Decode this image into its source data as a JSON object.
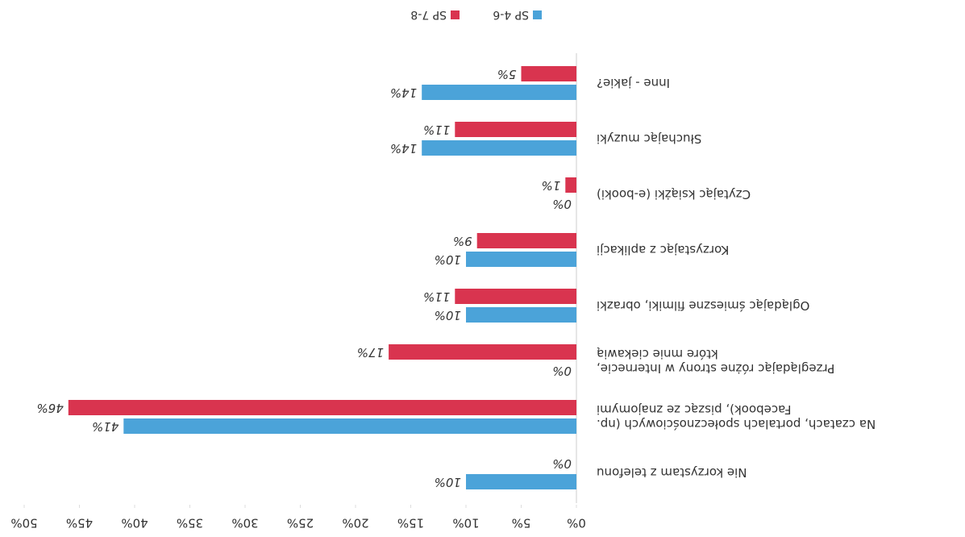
{
  "chart_data": {
    "type": "hbar",
    "categories": [
      "Nie korzystam z telefonu",
      "Na czatach, portalach społecznościowych (np. Facebook), pisząc ze znajomymi",
      "Przeglądając różne strony w Internecie, które mnie ciekawią",
      "Oglądając śmieszne filmiki, obrazki",
      "Korzystając z aplikacji",
      "Czytając książki (e-booki)",
      "Słuchając muzyki",
      "Inne - jakie?"
    ],
    "series": [
      {
        "name": "SP 4-6",
        "color": "#4ba3d9",
        "values": [
          10,
          41,
          0,
          10,
          10,
          0,
          14,
          14
        ],
        "value_labels": [
          "10%",
          "41%",
          "0%",
          "10%",
          "10%",
          "0%",
          "14%",
          "14%"
        ]
      },
      {
        "name": "SP 7-8",
        "color": "#d9344f",
        "values": [
          0,
          46,
          17,
          11,
          9,
          1,
          11,
          5
        ],
        "value_labels": [
          "0%",
          "46%",
          "17%",
          "11%",
          "9%",
          "1%",
          "11%",
          "5%"
        ]
      }
    ],
    "xlim": [
      0,
      50
    ],
    "xticks": [
      {
        "value": 0,
        "label": "0%"
      },
      {
        "value": 5,
        "label": "5%"
      },
      {
        "value": 10,
        "label": "10%"
      },
      {
        "value": 15,
        "label": "15%"
      },
      {
        "value": 20,
        "label": "20%"
      },
      {
        "value": 25,
        "label": "25%"
      },
      {
        "value": 30,
        "label": "30%"
      },
      {
        "value": 35,
        "label": "35%"
      },
      {
        "value": 40,
        "label": "40%"
      },
      {
        "value": 45,
        "label": "45%"
      },
      {
        "value": 50,
        "label": "50%"
      }
    ],
    "legend": "bottom"
  }
}
